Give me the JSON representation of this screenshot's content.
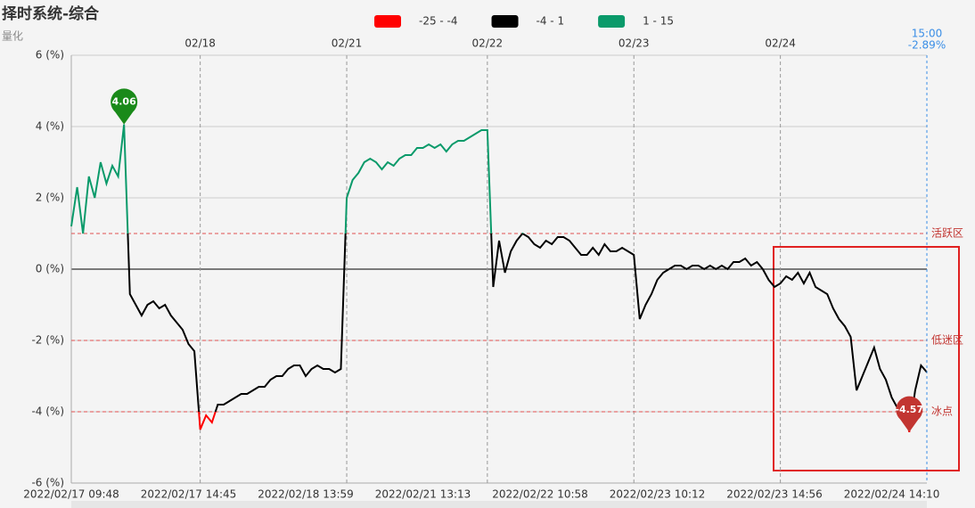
{
  "chart_data": {
    "type": "line",
    "title": "择时系统-综合",
    "subtitle": "量化",
    "ylim": [
      -6,
      6
    ],
    "yticks": [
      {
        "value": -6,
        "label": "-6 (%)"
      },
      {
        "value": -4,
        "label": "-4 (%)"
      },
      {
        "value": -2,
        "label": "-2 (%)"
      },
      {
        "value": 0,
        "label": "0 (%)"
      },
      {
        "value": 2,
        "label": "2 (%)"
      },
      {
        "value": 4,
        "label": "4 (%)"
      },
      {
        "value": 6,
        "label": "6 (%)"
      }
    ],
    "grid": true,
    "pieces": [
      {
        "label": "-25 - -4",
        "min": -25,
        "max": -4,
        "color": "#ff0000"
      },
      {
        "label": "-4 - 1",
        "min": -4,
        "max": 1,
        "color": "#000000"
      },
      {
        "label": "1 - 15",
        "min": 1,
        "max": 15,
        "color": "#0a9a6a"
      }
    ],
    "mark_lines": [
      {
        "value": 1,
        "label": "活跃区"
      },
      {
        "value": -2,
        "label": "低迷区"
      },
      {
        "value": -4,
        "label": "冰点"
      }
    ],
    "mark_points": [
      "max",
      "min"
    ],
    "pointer": {
      "label": "15:00",
      "value_label": "-2.89%",
      "value": -2.89
    },
    "categories": [
      "2022/02/17 09:48",
      null,
      null,
      null,
      null,
      null,
      null,
      null,
      null,
      null,
      null,
      null,
      null,
      null,
      null,
      null,
      null,
      null,
      null,
      null,
      "2022/02/17 14:45",
      null,
      null,
      null,
      null,
      null,
      null,
      null,
      null,
      null,
      null,
      null,
      null,
      null,
      null,
      null,
      null,
      null,
      null,
      null,
      "2022/02/18 13:59",
      null,
      null,
      null,
      null,
      null,
      null,
      null,
      null,
      null,
      null,
      null,
      null,
      null,
      null,
      null,
      null,
      null,
      null,
      null,
      "2022/02/21 13:13",
      null,
      null,
      null,
      null,
      null,
      null,
      null,
      null,
      null,
      null,
      null,
      null,
      null,
      null,
      null,
      null,
      null,
      null,
      null,
      "2022/02/22 10:58",
      null,
      null,
      null,
      null,
      null,
      null,
      null,
      null,
      null,
      null,
      null,
      null,
      null,
      null,
      null,
      null,
      null,
      null,
      null,
      "2022/02/23 10:12",
      null,
      null,
      null,
      null,
      null,
      null,
      null,
      null,
      null,
      null,
      null,
      null,
      null,
      null,
      null,
      null,
      null,
      null,
      null,
      "2022/02/23 14:56",
      null,
      null,
      null,
      null,
      null,
      null,
      null,
      null,
      null,
      null,
      null,
      null,
      null,
      null,
      null,
      null,
      null,
      null,
      null,
      "2022/02/24 14:10",
      null,
      null,
      null,
      null,
      null,
      null
    ],
    "x2_categories": [
      null,
      null,
      null,
      null,
      null,
      null,
      null,
      null,
      null,
      null,
      null,
      null,
      null,
      null,
      null,
      null,
      null,
      null,
      null,
      null,
      null,
      null,
      "02/18",
      null,
      null,
      null,
      null,
      null,
      null,
      null,
      null,
      null,
      null,
      null,
      null,
      null,
      null,
      null,
      null,
      null,
      null,
      null,
      null,
      null,
      null,
      null,
      null,
      "02/21",
      null,
      null,
      null,
      null,
      null,
      null,
      null,
      null,
      null,
      null,
      null,
      null,
      null,
      null,
      null,
      null,
      null,
      null,
      null,
      null,
      null,
      null,
      null,
      "02/22",
      null,
      null,
      null,
      null,
      null,
      null,
      null,
      null,
      null,
      null,
      null,
      null,
      null,
      null,
      null,
      null,
      null,
      null,
      null,
      null,
      null,
      null,
      null,
      null,
      "02/23",
      null,
      null,
      null,
      null,
      null,
      null,
      null,
      null,
      null,
      null,
      null,
      null,
      null,
      null,
      null,
      null,
      null,
      null,
      null,
      null,
      null,
      null,
      null,
      null,
      "02/24",
      null,
      null,
      null,
      null,
      null,
      null,
      null,
      null,
      null,
      null,
      null,
      null,
      null,
      null,
      null,
      null,
      null,
      null,
      null,
      null,
      null,
      null,
      null,
      null,
      null
    ],
    "values": [
      1.2,
      2.3,
      1.0,
      2.6,
      2.0,
      3.0,
      2.4,
      2.9,
      2.6,
      4.06,
      -0.7,
      -1.0,
      -1.3,
      -1.0,
      -0.9,
      -1.1,
      -1.0,
      -1.3,
      -1.5,
      -1.7,
      -2.1,
      -2.3,
      -4.5,
      -4.1,
      -4.3,
      -3.8,
      -3.8,
      -3.7,
      -3.6,
      -3.5,
      -3.5,
      -3.4,
      -3.3,
      -3.3,
      -3.1,
      -3.0,
      -3.0,
      -2.8,
      -2.7,
      -2.7,
      -3.0,
      -2.8,
      -2.7,
      -2.8,
      -2.8,
      -2.9,
      -2.8,
      2.0,
      2.5,
      2.7,
      3.0,
      3.1,
      3.0,
      2.8,
      3.0,
      2.9,
      3.1,
      3.2,
      3.2,
      3.4,
      3.4,
      3.5,
      3.4,
      3.5,
      3.3,
      3.5,
      3.6,
      3.6,
      3.7,
      3.8,
      3.9,
      3.9,
      -0.5,
      0.8,
      -0.1,
      0.5,
      0.8,
      1.0,
      0.9,
      0.7,
      0.6,
      0.8,
      0.7,
      0.9,
      0.9,
      0.8,
      0.6,
      0.4,
      0.4,
      0.6,
      0.4,
      0.7,
      0.5,
      0.5,
      0.6,
      0.5,
      0.4,
      -1.4,
      -1.0,
      -0.7,
      -0.3,
      -0.1,
      0.0,
      0.1,
      0.1,
      0.0,
      0.1,
      0.1,
      0.0,
      0.1,
      0.0,
      0.1,
      0.0,
      0.2,
      0.2,
      0.3,
      0.1,
      0.2,
      0.0,
      -0.3,
      -0.5,
      -0.4,
      -0.2,
      -0.3,
      -0.1,
      -0.4,
      -0.1,
      -0.5,
      -0.6,
      -0.7,
      -1.1,
      -1.4,
      -1.6,
      -1.9,
      -3.4,
      -3.0,
      -2.6,
      -2.2,
      -2.8,
      -3.1,
      -3.6,
      -3.9,
      -3.9,
      -4.57,
      -3.4,
      -2.7,
      -2.89
    ]
  }
}
